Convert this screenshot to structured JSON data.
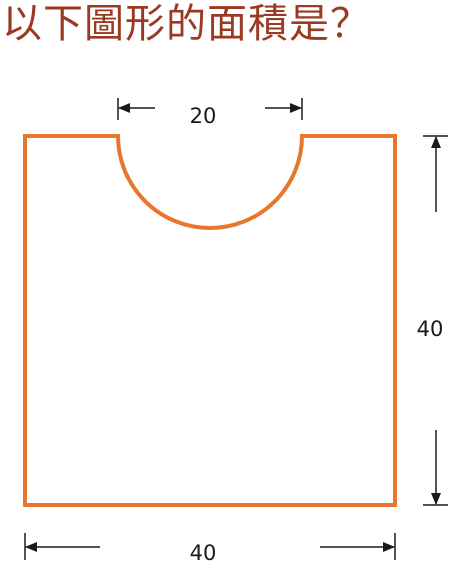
{
  "question": {
    "text": "以下圖形的面積是？",
    "color": "#9a3a22"
  },
  "figure": {
    "shape_color": "#e8762e",
    "dimension_color": "#1a1a1a",
    "labels": {
      "semicircle_width": "20",
      "height": "40",
      "bottom_width": "40"
    }
  }
}
